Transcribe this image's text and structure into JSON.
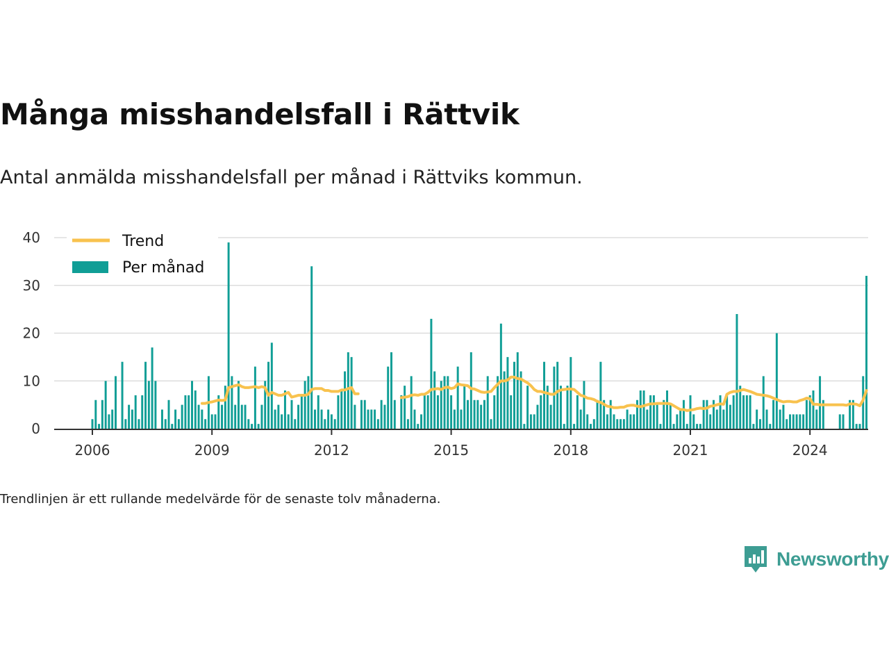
{
  "title": "Många misshandelsfall i Rättvik",
  "subtitle": "Antal anmälda misshandelsfall per månad i Rättviks kommun.",
  "note": "Trendlinjen är ett rullande medelvärde för de senaste tolv månaderna.",
  "brand": {
    "name": "Newsworthy",
    "color": "#3d9d93"
  },
  "chart_data": {
    "type": "bar",
    "ylim": [
      0,
      40
    ],
    "yticks": [
      0,
      10,
      20,
      30,
      40
    ],
    "xticks": [
      "2006",
      "2009",
      "2012",
      "2015",
      "2018",
      "2021",
      "2024"
    ],
    "start": "2006-01",
    "grid": true,
    "legend_position": "top-left",
    "series": [
      {
        "name": "Per månad",
        "kind": "bar",
        "color": "#109e96",
        "values": [
          2,
          6,
          1,
          6,
          10,
          3,
          4,
          11,
          0,
          14,
          2,
          5,
          4,
          7,
          2,
          7,
          14,
          10,
          17,
          10,
          0,
          4,
          2,
          6,
          1,
          4,
          2,
          5,
          7,
          7,
          10,
          8,
          5,
          4,
          2,
          11,
          3,
          3,
          7,
          5,
          9,
          39,
          11,
          5,
          10,
          5,
          5,
          2,
          1,
          13,
          1,
          5,
          10,
          14,
          18,
          4,
          5,
          3,
          8,
          3,
          6,
          2,
          5,
          7,
          10,
          11,
          34,
          4,
          7,
          4,
          2,
          4,
          3,
          2,
          7,
          8,
          12,
          16,
          15,
          5,
          null,
          6,
          6,
          4,
          4,
          4,
          2,
          6,
          5,
          13,
          16,
          6,
          null,
          7,
          9,
          2,
          11,
          4,
          1,
          3,
          7,
          7,
          23,
          12,
          7,
          10,
          11,
          11,
          7,
          4,
          13,
          4,
          9,
          6,
          16,
          6,
          6,
          5,
          6,
          11,
          2,
          7,
          11,
          22,
          12,
          15,
          7,
          14,
          16,
          12,
          1,
          9,
          3,
          3,
          5,
          7,
          14,
          9,
          5,
          13,
          14,
          9,
          1,
          9,
          15,
          1,
          7,
          4,
          10,
          3,
          1,
          2,
          6,
          14,
          6,
          3,
          6,
          3,
          2,
          2,
          2,
          4,
          3,
          3,
          6,
          8,
          8,
          4,
          7,
          7,
          5,
          1,
          6,
          8,
          5,
          1,
          3,
          4,
          6,
          1,
          7,
          3,
          1,
          1,
          6,
          6,
          3,
          6,
          4,
          7,
          4,
          7,
          5,
          7,
          24,
          9,
          7,
          7,
          7,
          1,
          4,
          2,
          11,
          4,
          1,
          6,
          20,
          4,
          5,
          2,
          3,
          3,
          3,
          3,
          3,
          6,
          7,
          8,
          4,
          11,
          6,
          null,
          null,
          null,
          null,
          3,
          3,
          null,
          6,
          6,
          1,
          1,
          11,
          32
        ]
      },
      {
        "name": "Trend",
        "kind": "line",
        "color": "#f8c24e",
        "values": [
          null,
          null,
          null,
          null,
          null,
          null,
          null,
          null,
          null,
          null,
          null,
          null,
          null,
          null,
          null,
          null,
          null,
          null,
          null,
          null,
          null,
          null,
          null,
          null,
          null,
          null,
          null,
          null,
          null,
          null,
          null,
          null,
          null,
          5.3,
          5.3,
          5.5,
          5.6,
          5.8,
          6.0,
          5.9,
          6.0,
          8.6,
          8.8,
          9.0,
          9.2,
          8.8,
          8.6,
          8.6,
          8.7,
          8.8,
          8.6,
          8.8,
          8.6,
          7.0,
          7.6,
          7.3,
          7.0,
          7.0,
          7.3,
          7.6,
          6.6,
          6.8,
          7.0,
          7.0,
          7.0,
          7.2,
          8.2,
          8.4,
          8.4,
          8.4,
          8.0,
          8.0,
          7.8,
          7.8,
          7.8,
          8.1,
          8.1,
          8.4,
          8.6,
          7.3,
          7.3,
          null,
          null,
          null,
          null,
          null,
          null,
          null,
          null,
          null,
          null,
          null,
          null,
          6.5,
          6.6,
          6.7,
          7.0,
          7.1,
          7.0,
          7.2,
          7.2,
          7.6,
          8.2,
          8.3,
          8.4,
          8.2,
          8.6,
          8.7,
          8.4,
          8.6,
          9.4,
          9.2,
          9.1,
          9.0,
          8.4,
          8.3,
          8.0,
          7.7,
          7.6,
          7.7,
          7.8,
          8.6,
          9.3,
          10.0,
          10.0,
          10.2,
          10.8,
          10.8,
          10.5,
          10.4,
          10.0,
          9.6,
          9.0,
          8.2,
          7.8,
          7.8,
          7.6,
          7.4,
          7.2,
          7.2,
          7.8,
          8.1,
          8.2,
          8.3,
          8.3,
          8.2,
          7.6,
          7.0,
          6.8,
          6.4,
          6.3,
          6.1,
          5.7,
          5.5,
          5.1,
          4.7,
          4.6,
          4.4,
          4.4,
          4.5,
          4.5,
          4.8,
          4.9,
          4.9,
          4.7,
          4.6,
          4.8,
          5.0,
          5.2,
          5.2,
          5.3,
          5.3,
          5.3,
          5.3,
          5.2,
          4.8,
          4.4,
          4.0,
          4.0,
          3.8,
          3.9,
          4.0,
          4.2,
          4.3,
          4.2,
          4.3,
          4.7,
          4.8,
          5.0,
          5.2,
          5.1,
          7.2,
          7.6,
          7.8,
          7.8,
          8.0,
          8.2,
          8.0,
          7.8,
          7.5,
          7.2,
          7.1,
          7.0,
          6.9,
          6.7,
          6.4,
          6.1,
          5.8,
          5.6,
          5.7,
          5.7,
          5.6,
          5.6,
          5.9,
          6.1,
          6.4,
          6.3,
          5.1,
          5.1,
          5.0,
          5.0,
          5.0,
          5.0,
          5.0,
          5.0,
          5.0,
          5.0,
          4.9,
          5.2,
          5.2,
          5.1,
          4.8,
          6.0,
          8.0
        ]
      }
    ]
  }
}
